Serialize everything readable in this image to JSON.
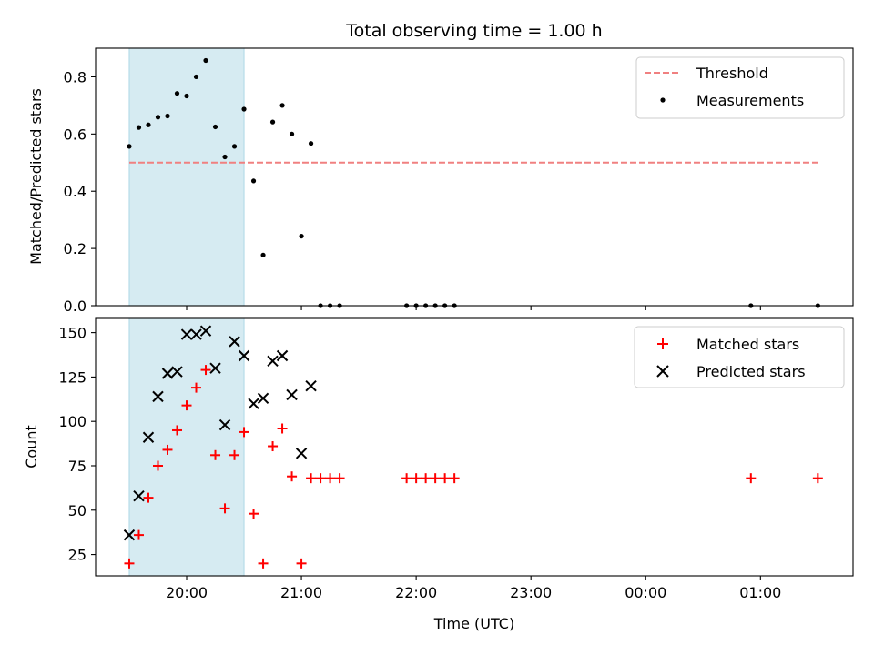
{
  "chart_data": [
    {
      "type": "scatter",
      "title": "Total observing time = 1.00 h",
      "xlabel": "",
      "ylabel": "Matched/Predicted stars",
      "ylim": [
        0,
        0.9
      ],
      "yticks": [
        "0.0",
        "0.2",
        "0.4",
        "0.6",
        "0.8"
      ],
      "legend_position": "top-right",
      "highlight_span": {
        "start": "19:30",
        "end": "20:30",
        "color": "#add8e6"
      },
      "threshold": {
        "name": "Threshold",
        "value": 0.5,
        "x_start": "19:30",
        "x_end": "01:30",
        "color": "#f08080",
        "style": "dashed"
      },
      "series": [
        {
          "name": "Measurements",
          "marker": "dot",
          "color": "#000000",
          "points": [
            [
              "19:30",
              0.557
            ],
            [
              "19:35",
              0.623
            ],
            [
              "19:40",
              0.632
            ],
            [
              "19:45",
              0.659
            ],
            [
              "19:50",
              0.663
            ],
            [
              "19:55",
              0.742
            ],
            [
              "20:00",
              0.733
            ],
            [
              "20:05",
              0.8
            ],
            [
              "20:10",
              0.857
            ],
            [
              "20:15",
              0.625
            ],
            [
              "20:20",
              0.52
            ],
            [
              "20:25",
              0.557
            ],
            [
              "20:30",
              0.687
            ],
            [
              "20:35",
              0.436
            ],
            [
              "20:40",
              0.177
            ],
            [
              "20:45",
              0.642
            ],
            [
              "20:50",
              0.7
            ],
            [
              "20:55",
              0.6
            ],
            [
              "21:00",
              0.243
            ],
            [
              "21:05",
              0.567
            ],
            [
              "21:10",
              0.0
            ],
            [
              "21:15",
              0.0
            ],
            [
              "21:20",
              0.0
            ],
            [
              "21:55",
              0.0
            ],
            [
              "22:00",
              0.0
            ],
            [
              "22:05",
              0.0
            ],
            [
              "22:10",
              0.0
            ],
            [
              "22:15",
              0.0
            ],
            [
              "22:20",
              0.0
            ],
            [
              "00:55",
              0.0
            ],
            [
              "01:30",
              0.0
            ]
          ]
        }
      ]
    },
    {
      "type": "scatter",
      "title": "",
      "xlabel": "Time (UTC)",
      "ylabel": "Count",
      "ylim": [
        13,
        158
      ],
      "yticks": [
        "25",
        "50",
        "75",
        "100",
        "125",
        "150"
      ],
      "xticks": [
        "20:00",
        "21:00",
        "22:00",
        "23:00",
        "00:00",
        "01:00"
      ],
      "legend_position": "top-right",
      "highlight_span": {
        "start": "19:30",
        "end": "20:30",
        "color": "#add8e6"
      },
      "series": [
        {
          "name": "Matched stars",
          "marker": "plus",
          "color": "#ff0000",
          "points": [
            [
              "19:30",
              20
            ],
            [
              "19:35",
              36
            ],
            [
              "19:40",
              57
            ],
            [
              "19:45",
              75
            ],
            [
              "19:50",
              84
            ],
            [
              "19:55",
              95
            ],
            [
              "20:00",
              109
            ],
            [
              "20:05",
              119
            ],
            [
              "20:10",
              129
            ],
            [
              "20:15",
              81
            ],
            [
              "20:20",
              51
            ],
            [
              "20:25",
              81
            ],
            [
              "20:30",
              94
            ],
            [
              "20:35",
              48
            ],
            [
              "20:40",
              20
            ],
            [
              "20:45",
              86
            ],
            [
              "20:50",
              96
            ],
            [
              "20:55",
              69
            ],
            [
              "21:00",
              20
            ],
            [
              "21:05",
              68
            ],
            [
              "21:10",
              68
            ],
            [
              "21:15",
              68
            ],
            [
              "21:20",
              68
            ],
            [
              "21:55",
              68
            ],
            [
              "22:00",
              68
            ],
            [
              "22:05",
              68
            ],
            [
              "22:10",
              68
            ],
            [
              "22:15",
              68
            ],
            [
              "22:20",
              68
            ],
            [
              "00:55",
              68
            ],
            [
              "01:30",
              68
            ]
          ]
        },
        {
          "name": "Predicted stars",
          "marker": "x",
          "color": "#000000",
          "points": [
            [
              "19:30",
              36
            ],
            [
              "19:35",
              58
            ],
            [
              "19:40",
              91
            ],
            [
              "19:45",
              114
            ],
            [
              "19:50",
              127
            ],
            [
              "19:55",
              128
            ],
            [
              "20:00",
              149
            ],
            [
              "20:05",
              149
            ],
            [
              "20:10",
              151
            ],
            [
              "20:15",
              130
            ],
            [
              "20:20",
              98
            ],
            [
              "20:25",
              145
            ],
            [
              "20:30",
              137
            ],
            [
              "20:35",
              110
            ],
            [
              "20:40",
              113
            ],
            [
              "20:45",
              134
            ],
            [
              "20:50",
              137
            ],
            [
              "20:55",
              115
            ],
            [
              "21:00",
              82
            ],
            [
              "21:05",
              120
            ]
          ]
        }
      ]
    }
  ]
}
